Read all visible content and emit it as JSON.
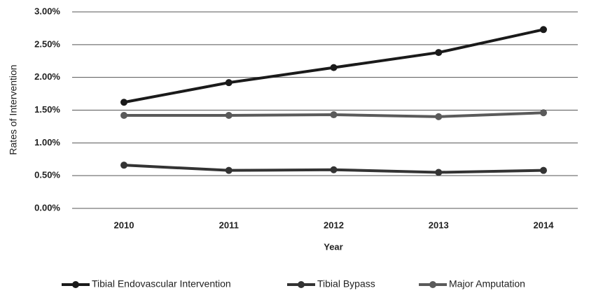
{
  "chart_data": {
    "type": "line",
    "x_label": "Year",
    "y_label": "Rates of Intervention",
    "categories": [
      "2010",
      "2011",
      "2012",
      "2013",
      "2014"
    ],
    "series": [
      {
        "name": "Tibial Endovascular Intervention",
        "color": "#1a1a1a",
        "values": [
          1.62,
          1.92,
          2.15,
          2.38,
          2.73
        ]
      },
      {
        "name": "Tibial Bypass",
        "color": "#333333",
        "values": [
          0.66,
          0.58,
          0.59,
          0.55,
          0.58
        ]
      },
      {
        "name": "Major Amputation",
        "color": "#5a5a5a",
        "values": [
          1.42,
          1.42,
          1.43,
          1.4,
          1.46
        ]
      }
    ],
    "ylim": [
      0,
      3
    ],
    "yticks": [
      {
        "value": 0,
        "label": "0.00%"
      },
      {
        "value": 0.5,
        "label": "0.50%"
      },
      {
        "value": 1,
        "label": "1.00%"
      },
      {
        "value": 1.5,
        "label": "1.50%"
      },
      {
        "value": 2,
        "label": "2.00%"
      },
      {
        "value": 2.5,
        "label": "2.50%"
      },
      {
        "value": 3,
        "label": "3.00%"
      }
    ],
    "grid": true,
    "legend": "bottom"
  }
}
